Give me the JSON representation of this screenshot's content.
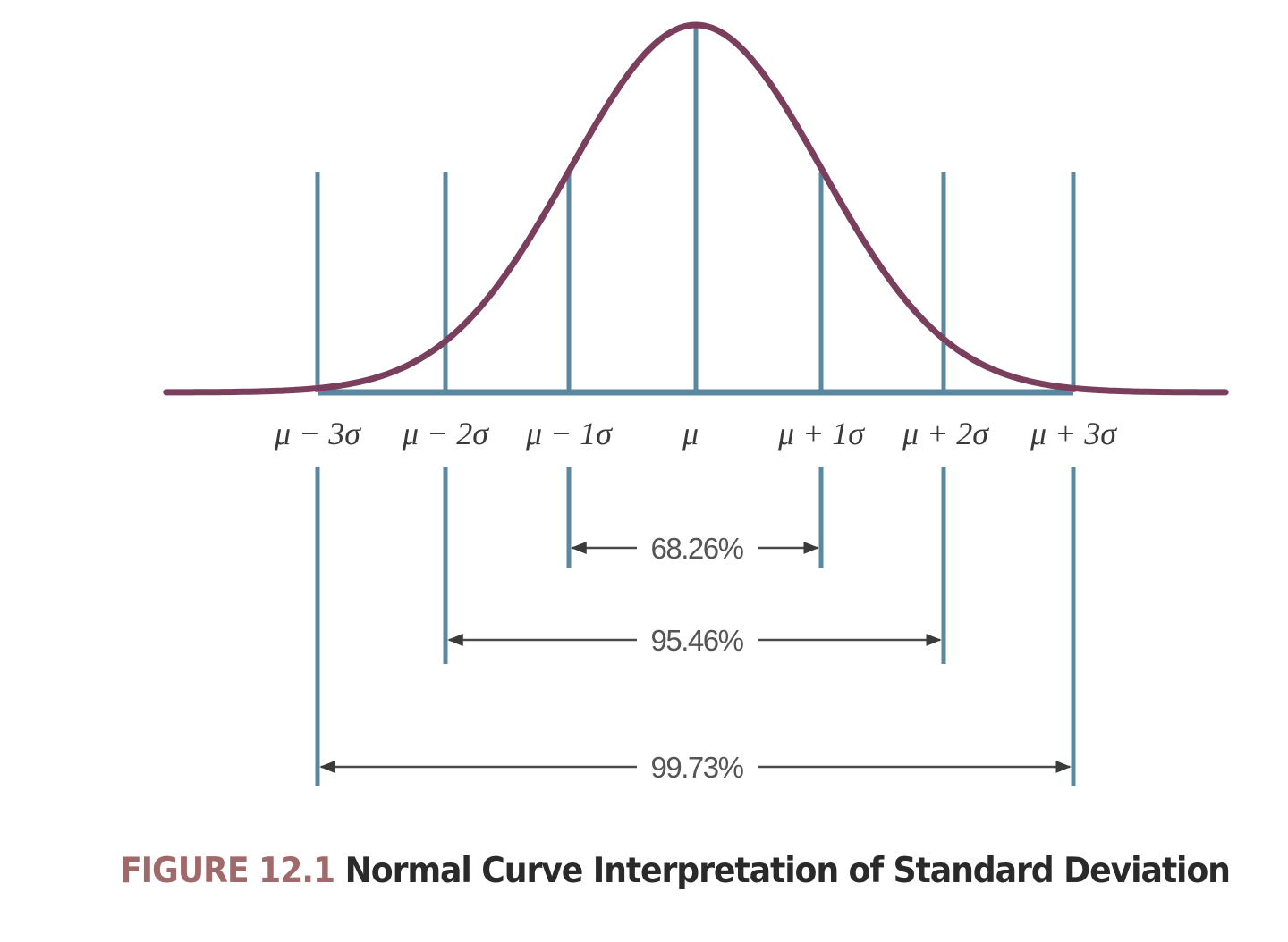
{
  "chart_data": {
    "type": "line",
    "title": "Normal Curve Interpretation of Standard Deviation",
    "figure_number": "FIGURE 12.1",
    "xlabel": "",
    "ylabel": "",
    "x_ticks": [
      "μ − 3σ",
      "μ − 2σ",
      "μ − 1σ",
      "μ",
      "μ + 1σ",
      "μ + 2σ",
      "μ + 3σ"
    ],
    "x_tick_values": [
      -3,
      -2,
      -1,
      0,
      1,
      2,
      3
    ],
    "xlim": [
      -4.2,
      4.2
    ],
    "curve": "standard normal density",
    "grid": false,
    "legend": null,
    "intervals": [
      {
        "from": -1,
        "to": 1,
        "label": "68.26%"
      },
      {
        "from": -2,
        "to": 2,
        "label": "95.46%"
      },
      {
        "from": -3,
        "to": 3,
        "label": "99.73%"
      }
    ]
  },
  "colors": {
    "curve": "#7a3f5c",
    "reference_lines": "#5a87a2",
    "arrows": "#4a4a4a",
    "caption_number": "#a06a6a",
    "caption_title": "#2a2a2a"
  },
  "caption": {
    "number": "FIGURE 12.1",
    "title": "Normal Curve Interpretation of Standard Deviation"
  },
  "labels": {
    "m3": "μ − 3σ",
    "m2": "μ − 2σ",
    "m1": "μ − 1σ",
    "mu": "μ",
    "p1": "μ + 1σ",
    "p2": "μ + 2σ",
    "p3": "μ + 3σ",
    "pct68": "68.26%",
    "pct95": "95.46%",
    "pct99": "99.73%"
  }
}
